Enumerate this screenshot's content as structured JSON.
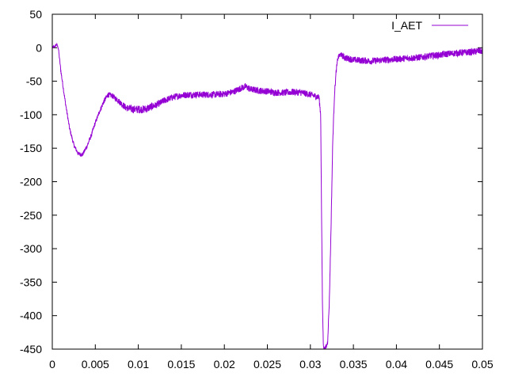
{
  "chart_data": {
    "type": "line",
    "title": "",
    "xlabel": "",
    "ylabel": "",
    "xlim": [
      0,
      0.05
    ],
    "ylim": [
      -450,
      50
    ],
    "x_ticks": [
      0,
      0.005,
      0.01,
      0.015,
      0.02,
      0.025,
      0.03,
      0.035,
      0.04,
      0.045,
      0.05
    ],
    "x_tick_labels": [
      "0",
      "0.005",
      "0.01",
      "0.015",
      "0.02",
      "0.025",
      "0.03",
      "0.035",
      "0.04",
      "0.045",
      "0.05"
    ],
    "y_ticks": [
      50,
      0,
      -50,
      -100,
      -150,
      -200,
      -250,
      -300,
      -350,
      -400,
      -450
    ],
    "y_tick_labels": [
      "50",
      "0",
      "-50",
      "-100",
      "-150",
      "-200",
      "-250",
      "-300",
      "-350",
      "-400",
      "-450"
    ],
    "grid": false,
    "legend": {
      "position": "top-right"
    },
    "series": [
      {
        "name": "I_AET",
        "color": "#9400d3",
        "x": [
          0,
          0.0003,
          0.0005,
          0.0007,
          0.001,
          0.0015,
          0.002,
          0.0025,
          0.003,
          0.0035,
          0.004,
          0.0045,
          0.005,
          0.0055,
          0.006,
          0.0065,
          0.007,
          0.0075,
          0.008,
          0.0085,
          0.009,
          0.0095,
          0.01,
          0.0105,
          0.011,
          0.0115,
          0.012,
          0.013,
          0.014,
          0.015,
          0.016,
          0.017,
          0.018,
          0.019,
          0.02,
          0.021,
          0.022,
          0.0225,
          0.023,
          0.024,
          0.025,
          0.026,
          0.027,
          0.028,
          0.029,
          0.03,
          0.0305,
          0.031,
          0.0312,
          0.0313,
          0.0314,
          0.0315,
          0.0316,
          0.0318,
          0.032,
          0.0322,
          0.0324,
          0.0326,
          0.0328,
          0.033,
          0.0332,
          0.0335,
          0.034,
          0.035,
          0.036,
          0.037,
          0.038,
          0.039,
          0.04,
          0.041,
          0.042,
          0.043,
          0.044,
          0.045,
          0.046,
          0.047,
          0.048,
          0.049,
          0.0495,
          0.05
        ],
        "values": [
          0,
          2,
          5,
          0,
          -35,
          -80,
          -120,
          -145,
          -158,
          -160,
          -148,
          -132,
          -112,
          -95,
          -80,
          -70,
          -72,
          -77,
          -83,
          -89,
          -91,
          -92,
          -92,
          -92,
          -91,
          -88,
          -86,
          -79,
          -74,
          -71,
          -70,
          -70,
          -70,
          -70,
          -69,
          -66,
          -60,
          -58,
          -62,
          -64,
          -65,
          -67,
          -67,
          -66,
          -67,
          -70,
          -72,
          -74,
          -100,
          -250,
          -380,
          -440,
          -450,
          -448,
          -440,
          -380,
          -270,
          -140,
          -70,
          -35,
          -15,
          -10,
          -15,
          -18,
          -19,
          -20,
          -19,
          -18,
          -17,
          -16,
          -15,
          -14,
          -12,
          -11,
          -9,
          -8,
          -7,
          -6,
          -5,
          -5
        ],
        "noise": [
          2,
          2,
          2,
          2,
          3,
          3,
          3,
          3,
          3,
          3,
          3,
          3,
          3,
          3,
          4,
          4,
          4,
          4,
          5,
          5,
          6,
          6,
          6,
          6,
          6,
          6,
          5,
          5,
          5,
          5,
          5,
          5,
          5,
          5,
          5,
          5,
          5,
          5,
          5,
          5,
          5,
          5,
          5,
          5,
          5,
          5,
          5,
          5,
          4,
          4,
          4,
          4,
          4,
          4,
          4,
          4,
          4,
          4,
          4,
          4,
          4,
          4,
          5,
          5,
          5,
          5,
          5,
          5,
          5,
          5,
          5,
          5,
          5,
          5,
          5,
          5,
          5,
          5,
          5,
          5
        ]
      }
    ]
  }
}
